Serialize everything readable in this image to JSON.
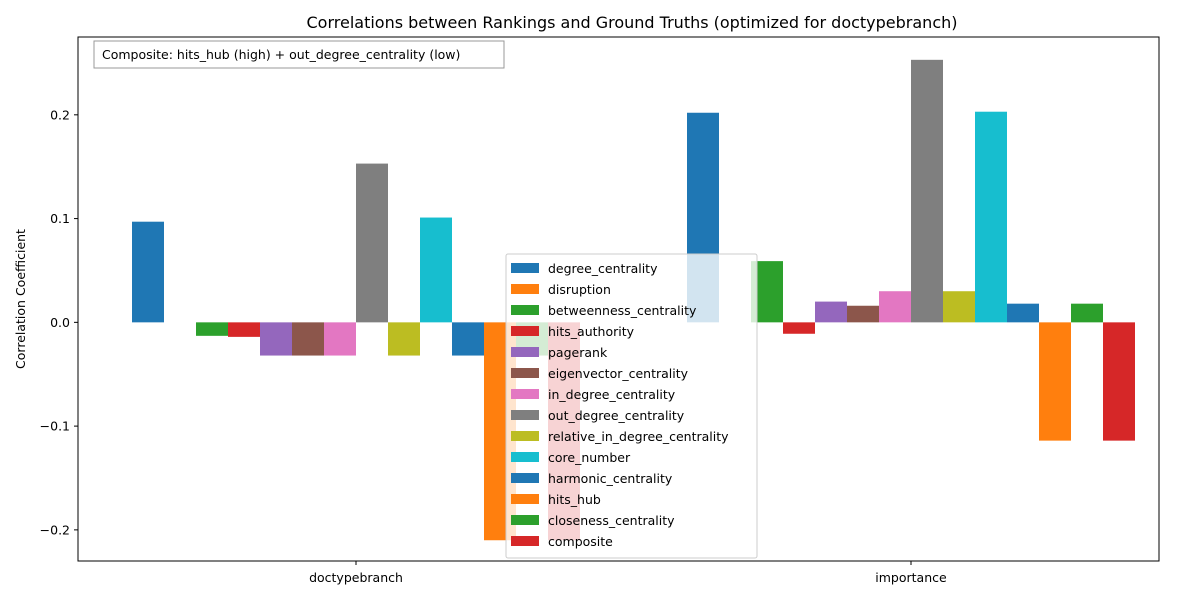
{
  "chart_data": {
    "type": "bar",
    "title": "Correlations between Rankings and Ground Truths (optimized for doctypebranch)",
    "xlabel": "",
    "ylabel": "Correlation Coefficient",
    "categories": [
      "doctypebranch",
      "importance"
    ],
    "ylim": [
      -0.23,
      0.275
    ],
    "yticks": [
      -0.2,
      -0.1,
      0.0,
      0.1,
      0.2
    ],
    "ytick_labels": [
      "−0.2",
      "−0.1",
      "0.0",
      "0.1",
      "0.2"
    ],
    "grid": false,
    "legend_position": "lower-center",
    "annotation": "Composite: hits_hub (high) + out_degree_centrality (low)",
    "series": [
      {
        "name": "degree_centrality",
        "color": "#1f77b4",
        "values": [
          0.097,
          0.202
        ]
      },
      {
        "name": "disruption",
        "color": "#ff7f0e",
        "values": [
          0.0,
          0.0
        ]
      },
      {
        "name": "betweenness_centrality",
        "color": "#2ca02c",
        "values": [
          -0.013,
          0.059
        ]
      },
      {
        "name": "hits_authority",
        "color": "#d62728",
        "values": [
          -0.014,
          -0.011
        ]
      },
      {
        "name": "pagerank",
        "color": "#9467bd",
        "values": [
          -0.032,
          0.02
        ]
      },
      {
        "name": "eigenvector_centrality",
        "color": "#8c564b",
        "values": [
          -0.032,
          0.016
        ]
      },
      {
        "name": "in_degree_centrality",
        "color": "#e377c2",
        "values": [
          -0.032,
          0.03
        ]
      },
      {
        "name": "out_degree_centrality",
        "color": "#7f7f7f",
        "values": [
          0.153,
          0.253
        ]
      },
      {
        "name": "relative_in_degree_centrality",
        "color": "#bcbd22",
        "values": [
          -0.032,
          0.03
        ]
      },
      {
        "name": "core_number",
        "color": "#17becf",
        "values": [
          0.101,
          0.203
        ]
      },
      {
        "name": "harmonic_centrality",
        "color": "#1f77b4",
        "values": [
          -0.032,
          0.018
        ]
      },
      {
        "name": "hits_hub",
        "color": "#ff7f0e",
        "values": [
          -0.21,
          -0.114
        ]
      },
      {
        "name": "closeness_centrality",
        "color": "#2ca02c",
        "values": [
          -0.032,
          0.018
        ]
      },
      {
        "name": "composite",
        "color": "#d62728",
        "values": [
          -0.21,
          -0.114
        ]
      }
    ]
  }
}
